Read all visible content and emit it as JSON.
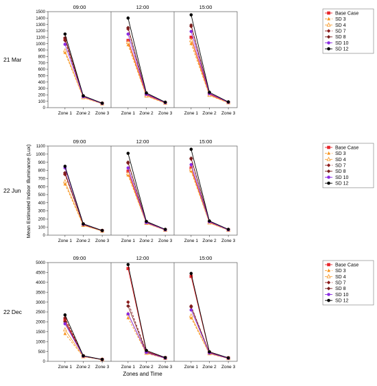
{
  "chart_data": {
    "type": "line",
    "xlabel": "Zones and Time",
    "ylabel": "Mean Estimated Indoor Illuminance (Lux)",
    "times": [
      "09:00",
      "12:00",
      "15:00"
    ],
    "zones": [
      "Zone 1",
      "Zone 2",
      "Zone 3"
    ],
    "legend_placement": "right",
    "series_styles": [
      {
        "name": "Base Case",
        "color": "#e8252a",
        "marker": "square",
        "dashed": false
      },
      {
        "name": "SD 3",
        "color": "#f7941d",
        "marker": "triangle",
        "dashed": true
      },
      {
        "name": "SD 4",
        "color": "#f7a13a",
        "marker": "triangle-open",
        "dashed": false
      },
      {
        "name": "SD 7",
        "color": "#8b1a1a",
        "marker": "diamond",
        "dashed": true
      },
      {
        "name": "SD 8",
        "color": "#7a1f1f",
        "marker": "diamond",
        "dashed": false
      },
      {
        "name": "SD 10",
        "color": "#8a2be2",
        "marker": "circle",
        "dashed": false
      },
      {
        "name": "SD 12",
        "color": "#000000",
        "marker": "circle",
        "dashed": false
      }
    ],
    "panels": [
      {
        "label": "21 Mar",
        "ylim": [
          0,
          1500
        ],
        "yticks": [
          0,
          100,
          200,
          300,
          400,
          500,
          600,
          700,
          800,
          900,
          1000,
          1100,
          1200,
          1300,
          1400,
          1500
        ],
        "values": {
          "09:00": [
            [
              1080,
              170,
              65
            ],
            [
              860,
              155,
              60
            ],
            [
              890,
              158,
              62
            ],
            [
              1050,
              175,
              66
            ],
            [
              1090,
              178,
              67
            ],
            [
              990,
              172,
              65
            ],
            [
              1150,
              185,
              70
            ]
          ],
          "12:00": [
            [
              1050,
              200,
              75
            ],
            [
              980,
              180,
              70
            ],
            [
              1020,
              185,
              72
            ],
            [
              1230,
              210,
              80
            ],
            [
              1250,
              215,
              82
            ],
            [
              1150,
              210,
              78
            ],
            [
              1400,
              230,
              85
            ]
          ],
          "15:00": [
            [
              1100,
              210,
              80
            ],
            [
              1000,
              190,
              75
            ],
            [
              1050,
              195,
              77
            ],
            [
              1270,
              220,
              85
            ],
            [
              1290,
              225,
              87
            ],
            [
              1190,
              220,
              83
            ],
            [
              1450,
              240,
              90
            ]
          ]
        }
      },
      {
        "label": "22 Jun",
        "ylim": [
          0,
          1100
        ],
        "yticks": [
          0,
          100,
          200,
          300,
          400,
          500,
          600,
          700,
          800,
          900,
          1000,
          1100
        ],
        "values": {
          "09:00": [
            [
              760,
              130,
              55
            ],
            [
              630,
              120,
              50
            ],
            [
              660,
              122,
              52
            ],
            [
              750,
              130,
              55
            ],
            [
              770,
              132,
              56
            ],
            [
              830,
              135,
              57
            ],
            [
              850,
              140,
              58
            ]
          ],
          "12:00": [
            [
              790,
              150,
              65
            ],
            [
              740,
              145,
              62
            ],
            [
              760,
              147,
              63
            ],
            [
              890,
              160,
              68
            ],
            [
              900,
              162,
              69
            ],
            [
              830,
              155,
              66
            ],
            [
              1010,
              170,
              72
            ]
          ],
          "15:00": [
            [
              830,
              160,
              65
            ],
            [
              790,
              150,
              62
            ],
            [
              810,
              152,
              63
            ],
            [
              940,
              170,
              68
            ],
            [
              950,
              172,
              69
            ],
            [
              870,
              165,
              66
            ],
            [
              1060,
              175,
              72
            ]
          ]
        }
      },
      {
        "label": "22 Dec",
        "ylim": [
          0,
          5000
        ],
        "yticks": [
          0,
          500,
          1000,
          1500,
          2000,
          2500,
          3000,
          3500,
          4000,
          4500,
          5000
        ],
        "values": {
          "09:00": [
            [
              2100,
              260,
              90
            ],
            [
              1400,
              230,
              80
            ],
            [
              1600,
              240,
              85
            ],
            [
              2200,
              270,
              92
            ],
            [
              2000,
              265,
              90
            ],
            [
              1900,
              262,
              88
            ],
            [
              2350,
              280,
              95
            ]
          ],
          "12:00": [
            [
              4700,
              500,
              180
            ],
            [
              2200,
              400,
              150
            ],
            [
              2400,
              420,
              155
            ],
            [
              3000,
              480,
              170
            ],
            [
              2800,
              470,
              165
            ],
            [
              2400,
              450,
              160
            ],
            [
              4900,
              550,
              190
            ]
          ],
          "15:00": [
            [
              4300,
              450,
              170
            ],
            [
              2200,
              380,
              140
            ],
            [
              2300,
              390,
              145
            ],
            [
              2800,
              430,
              160
            ],
            [
              2750,
              425,
              158
            ],
            [
              2600,
              420,
              155
            ],
            [
              4450,
              480,
              175
            ]
          ]
        }
      }
    ]
  }
}
